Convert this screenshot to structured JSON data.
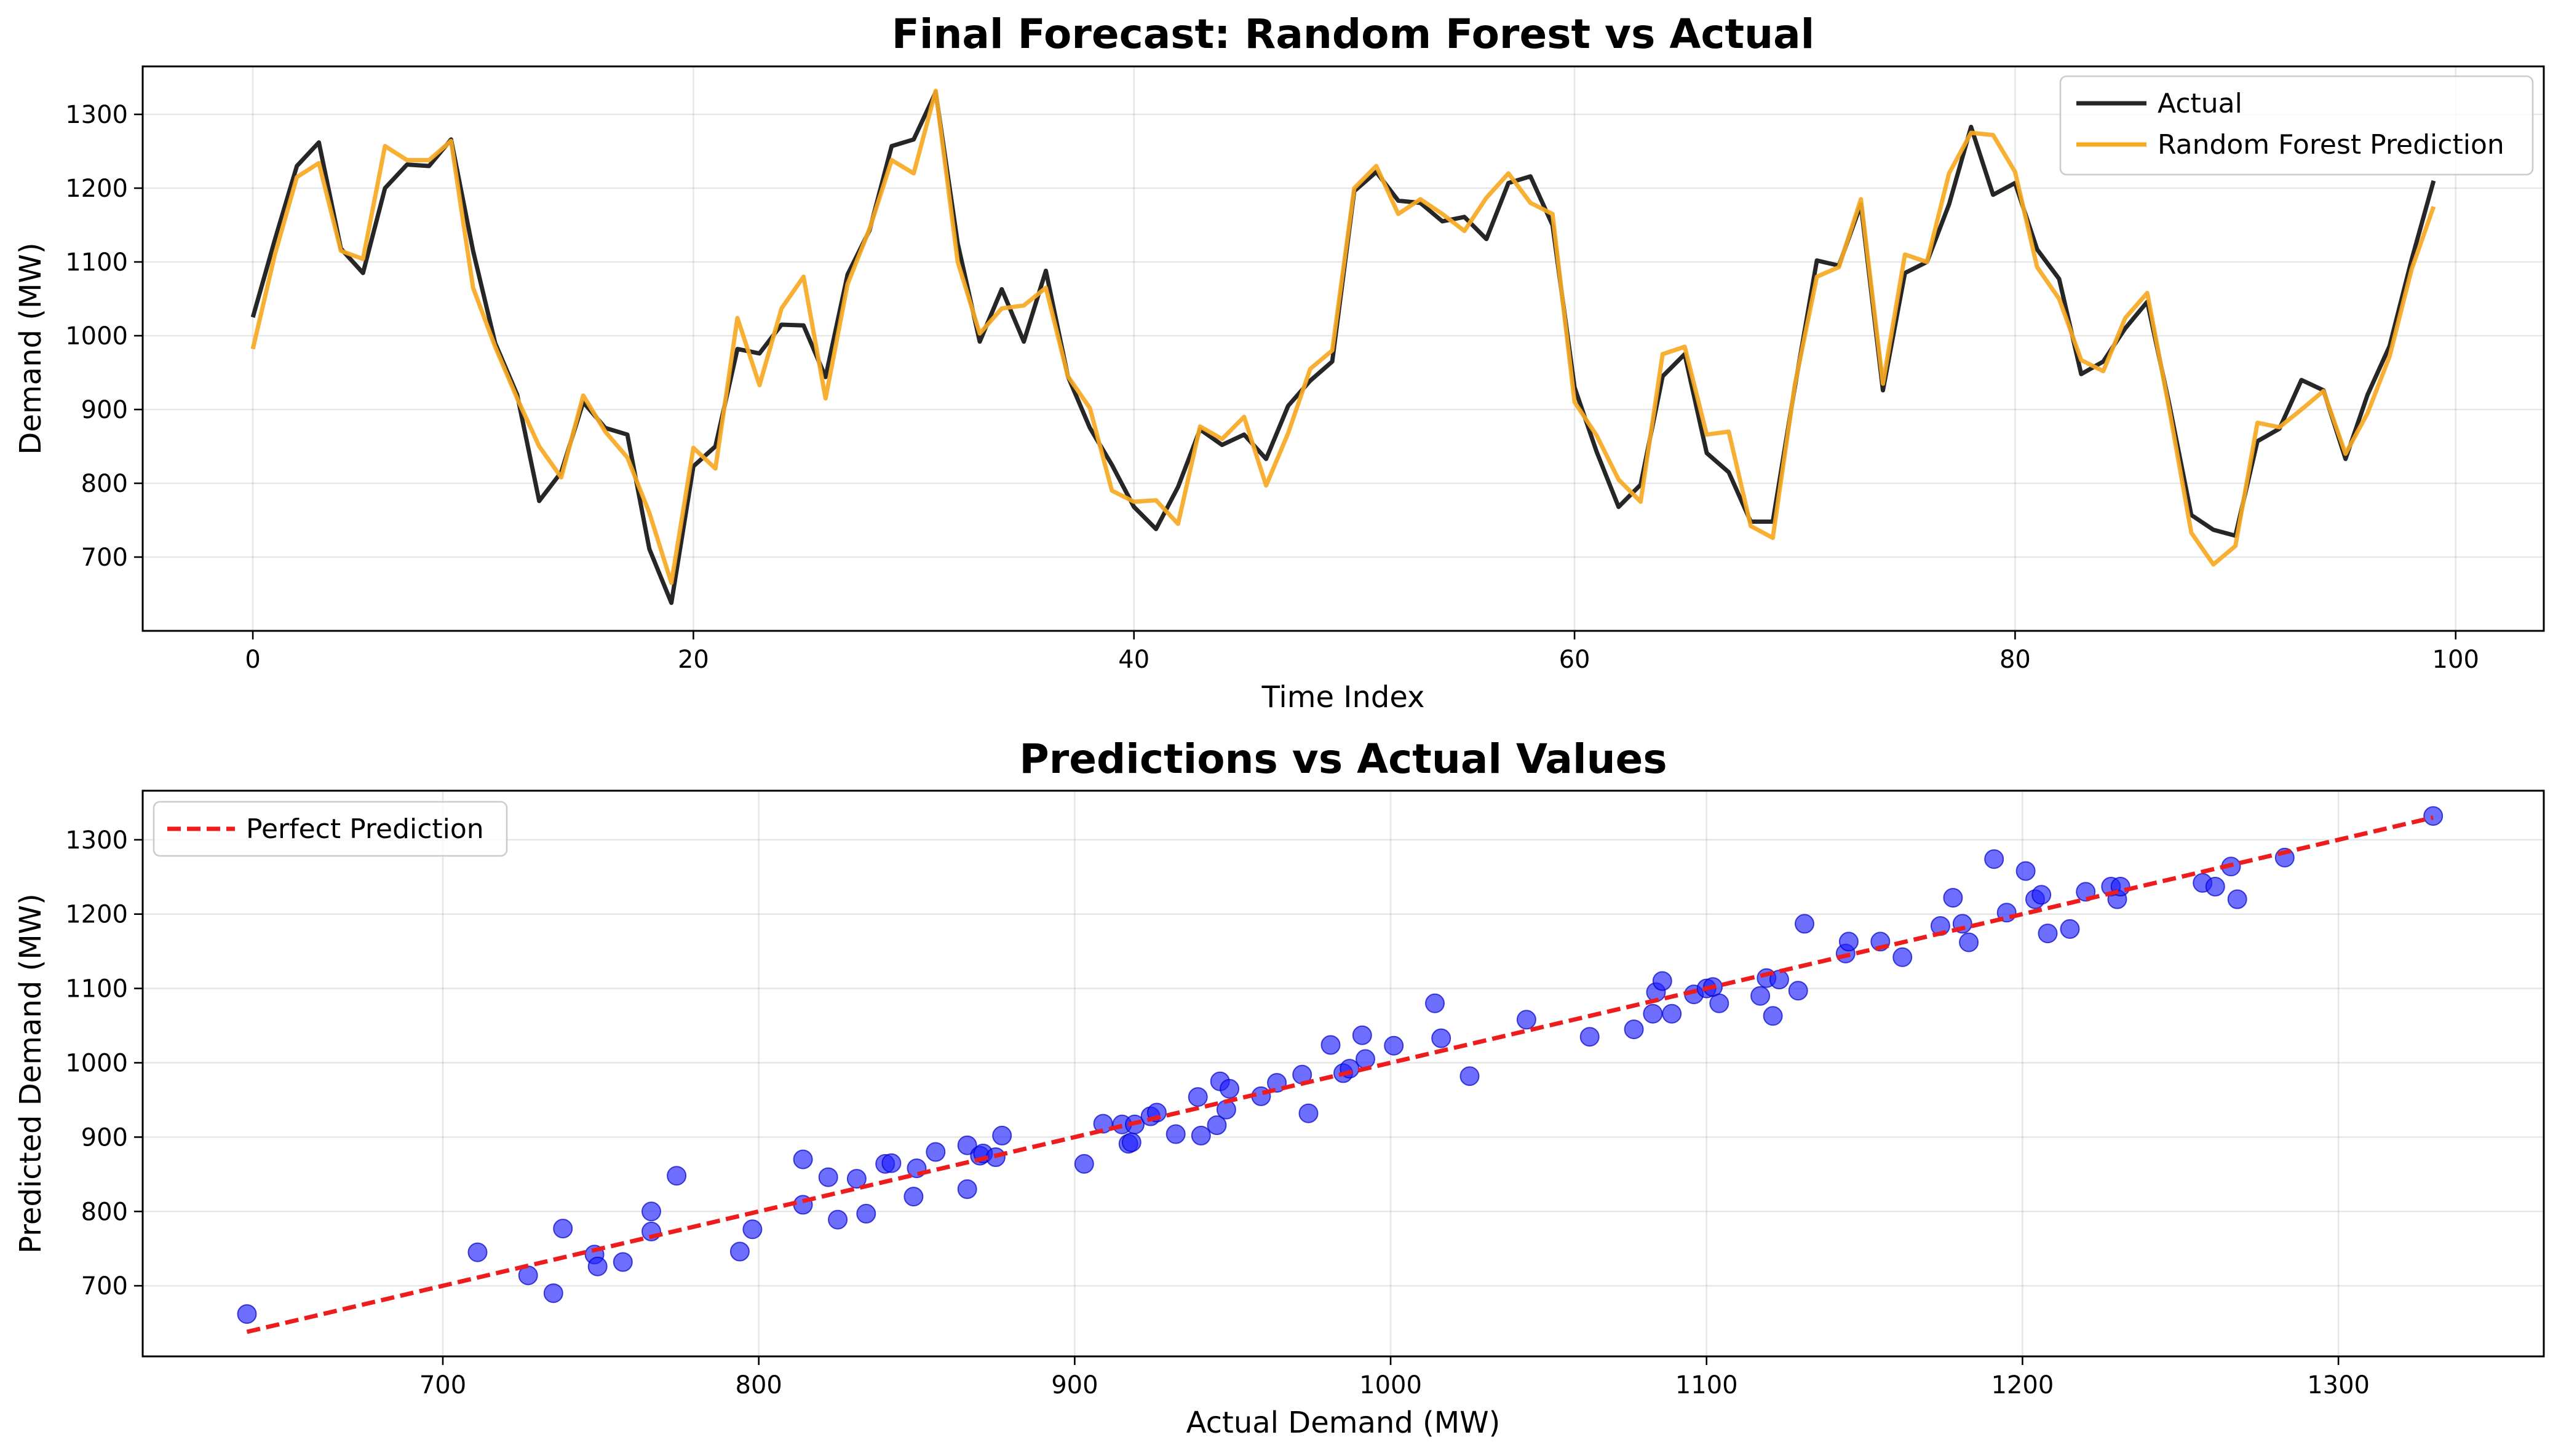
{
  "chart_data": [
    {
      "type": "line",
      "title": "Final Forecast: Random Forest vs Actual",
      "xlabel": "Time Index",
      "ylabel": "Demand (MW)",
      "xlim": [
        -5,
        104
      ],
      "ylim": [
        600,
        1365
      ],
      "xticks": [
        0,
        20,
        40,
        60,
        80,
        100
      ],
      "yticks": [
        700,
        800,
        900,
        1000,
        1100,
        1200,
        1300
      ],
      "grid": true,
      "legend_position": "upper right",
      "series": [
        {
          "name": "Actual",
          "color": "#262626",
          "x": [
            0,
            1,
            2,
            3,
            4,
            5,
            6,
            7,
            8,
            9,
            10,
            11,
            12,
            13,
            14,
            15,
            16,
            17,
            18,
            19,
            20,
            21,
            22,
            23,
            24,
            25,
            26,
            27,
            28,
            29,
            30,
            31,
            32,
            33,
            34,
            35,
            36,
            37,
            38,
            39,
            40,
            41,
            42,
            43,
            44,
            45,
            46,
            47,
            48,
            49,
            50,
            51,
            52,
            53,
            54,
            55,
            56,
            57,
            58,
            59,
            60,
            61,
            62,
            63,
            64,
            65,
            66,
            67,
            68,
            69,
            70,
            71,
            72,
            73,
            74,
            75,
            76,
            77,
            78,
            79,
            80,
            81,
            82,
            83,
            84,
            85,
            86,
            87,
            88,
            89,
            90,
            91,
            92,
            93,
            94,
            95,
            96,
            97,
            98,
            99
          ],
          "values": [
            1025,
            1130,
            1230,
            1262,
            1118,
            1085,
            1200,
            1232,
            1230,
            1266,
            1115,
            990,
            920,
            776,
            815,
            910,
            875,
            866,
            711,
            638,
            823,
            850,
            982,
            976,
            1015,
            1014,
            944,
            1083,
            1143,
            1257,
            1266,
            1330,
            1125,
            992,
            1063,
            992,
            1088,
            945,
            875,
            825,
            768,
            738,
            795,
            873,
            852,
            866,
            833,
            905,
            939,
            965,
            1196,
            1222,
            1183,
            1180,
            1155,
            1161,
            1131,
            1207,
            1216,
            1150,
            930,
            843,
            768,
            798,
            945,
            975,
            841,
            815,
            748,
            748,
            930,
            1102,
            1095,
            1178,
            926,
            1085,
            1100,
            1178,
            1283,
            1191,
            1207,
            1117,
            1077,
            948,
            965,
            1010,
            1046,
            907,
            757,
            737,
            729,
            857,
            874,
            940,
            926,
            833,
            920,
            986,
            1103,
            1210
          ]
        },
        {
          "name": "Random Forest Prediction",
          "color": "#f7a923",
          "x": [
            0,
            1,
            2,
            3,
            4,
            5,
            6,
            7,
            8,
            9,
            10,
            11,
            12,
            13,
            14,
            15,
            16,
            17,
            18,
            19,
            20,
            21,
            22,
            23,
            24,
            25,
            26,
            27,
            28,
            29,
            30,
            31,
            32,
            33,
            34,
            35,
            36,
            37,
            38,
            39,
            40,
            41,
            42,
            43,
            44,
            45,
            46,
            47,
            48,
            49,
            50,
            51,
            52,
            53,
            54,
            55,
            56,
            57,
            58,
            59,
            60,
            61,
            62,
            63,
            64,
            65,
            66,
            67,
            68,
            69,
            70,
            71,
            72,
            73,
            74,
            75,
            76,
            77,
            78,
            79,
            80,
            81,
            82,
            83,
            84,
            85,
            86,
            87,
            88,
            89,
            90,
            91,
            92,
            93,
            94,
            95,
            96,
            97,
            98,
            99
          ],
          "values": [
            982,
            1110,
            1215,
            1234,
            1115,
            1104,
            1257,
            1238,
            1238,
            1264,
            1065,
            985,
            915,
            850,
            808,
            919,
            870,
            835,
            760,
            665,
            848,
            820,
            1024,
            933,
            1037,
            1080,
            915,
            1070,
            1145,
            1238,
            1220,
            1332,
            1100,
            1003,
            1037,
            1041,
            1065,
            945,
            902,
            790,
            775,
            777,
            745,
            877,
            860,
            890,
            797,
            868,
            955,
            980,
            1200,
            1230,
            1165,
            1185,
            1165,
            1142,
            1187,
            1220,
            1180,
            1165,
            910,
            865,
            805,
            775,
            975,
            985,
            866,
            870,
            742,
            726,
            933,
            1080,
            1093,
            1185,
            935,
            1110,
            1100,
            1220,
            1275,
            1272,
            1222,
            1093,
            1050,
            967,
            952,
            1024,
            1058,
            900,
            733,
            690,
            715,
            882,
            876,
            900,
            925,
            840,
            895,
            972,
            1090,
            1175
          ]
        }
      ]
    },
    {
      "type": "scatter",
      "title": "Predictions vs Actual Values",
      "xlabel": "Actual Demand (MW)",
      "ylabel": "Predicted Demand (MW)",
      "xlim": [
        605,
        1365
      ],
      "ylim": [
        605,
        1366
      ],
      "xticks": [
        700,
        800,
        900,
        1000,
        1100,
        1200,
        1300
      ],
      "yticks": [
        700,
        800,
        900,
        1000,
        1100,
        1200,
        1300
      ],
      "grid": true,
      "legend_position": "upper left",
      "reference_line": {
        "name": "Perfect Prediction",
        "color": "#ee1c1c",
        "x": [
          638,
          1330
        ],
        "y": [
          638,
          1330
        ]
      },
      "points_color": "#2020ff",
      "points": [
        [
          638,
          662
        ],
        [
          711,
          745
        ],
        [
          727,
          714
        ],
        [
          735,
          690
        ],
        [
          738,
          777
        ],
        [
          748,
          742
        ],
        [
          749,
          726
        ],
        [
          757,
          732
        ],
        [
          766,
          773
        ],
        [
          766,
          800
        ],
        [
          774,
          848
        ],
        [
          794,
          746
        ],
        [
          798,
          776
        ],
        [
          814,
          870
        ],
        [
          814,
          809
        ],
        [
          822,
          846
        ],
        [
          825,
          789
        ],
        [
          831,
          844
        ],
        [
          834,
          797
        ],
        [
          840,
          864
        ],
        [
          842,
          865
        ],
        [
          849,
          820
        ],
        [
          850,
          858
        ],
        [
          856,
          880
        ],
        [
          866,
          830
        ],
        [
          866,
          889
        ],
        [
          870,
          875
        ],
        [
          871,
          878
        ],
        [
          875,
          873
        ],
        [
          877,
          902
        ],
        [
          903,
          864
        ],
        [
          909,
          918
        ],
        [
          915,
          917
        ],
        [
          917,
          891
        ],
        [
          918,
          893
        ],
        [
          919,
          917
        ],
        [
          924,
          928
        ],
        [
          926,
          933
        ],
        [
          932,
          904
        ],
        [
          939,
          954
        ],
        [
          940,
          902
        ],
        [
          945,
          916
        ],
        [
          946,
          975
        ],
        [
          948,
          937
        ],
        [
          949,
          965
        ],
        [
          959,
          955
        ],
        [
          964,
          973
        ],
        [
          972,
          984
        ],
        [
          974,
          932
        ],
        [
          981,
          1024
        ],
        [
          985,
          986
        ],
        [
          987,
          992
        ],
        [
          991,
          1037
        ],
        [
          992,
          1005
        ],
        [
          1001,
          1023
        ],
        [
          1014,
          1080
        ],
        [
          1016,
          1033
        ],
        [
          1025,
          982
        ],
        [
          1043,
          1058
        ],
        [
          1063,
          1035
        ],
        [
          1077,
          1045
        ],
        [
          1083,
          1066
        ],
        [
          1084,
          1095
        ],
        [
          1086,
          1110
        ],
        [
          1089,
          1066
        ],
        [
          1096,
          1092
        ],
        [
          1100,
          1100
        ],
        [
          1102,
          1102
        ],
        [
          1104,
          1080
        ],
        [
          1117,
          1090
        ],
        [
          1119,
          1114
        ],
        [
          1121,
          1063
        ],
        [
          1123,
          1112
        ],
        [
          1129,
          1097
        ],
        [
          1131,
          1187
        ],
        [
          1144,
          1147
        ],
        [
          1145,
          1163
        ],
        [
          1155,
          1163
        ],
        [
          1162,
          1142
        ],
        [
          1174,
          1184
        ],
        [
          1178,
          1222
        ],
        [
          1181,
          1187
        ],
        [
          1183,
          1162
        ],
        [
          1191,
          1274
        ],
        [
          1195,
          1202
        ],
        [
          1201,
          1258
        ],
        [
          1204,
          1220
        ],
        [
          1206,
          1226
        ],
        [
          1208,
          1174
        ],
        [
          1215,
          1180
        ],
        [
          1220,
          1230
        ],
        [
          1228,
          1237
        ],
        [
          1230,
          1220
        ],
        [
          1231,
          1237
        ],
        [
          1257,
          1242
        ],
        [
          1261,
          1237
        ],
        [
          1266,
          1264
        ],
        [
          1268,
          1220
        ],
        [
          1283,
          1276
        ],
        [
          1330,
          1332
        ]
      ]
    }
  ]
}
